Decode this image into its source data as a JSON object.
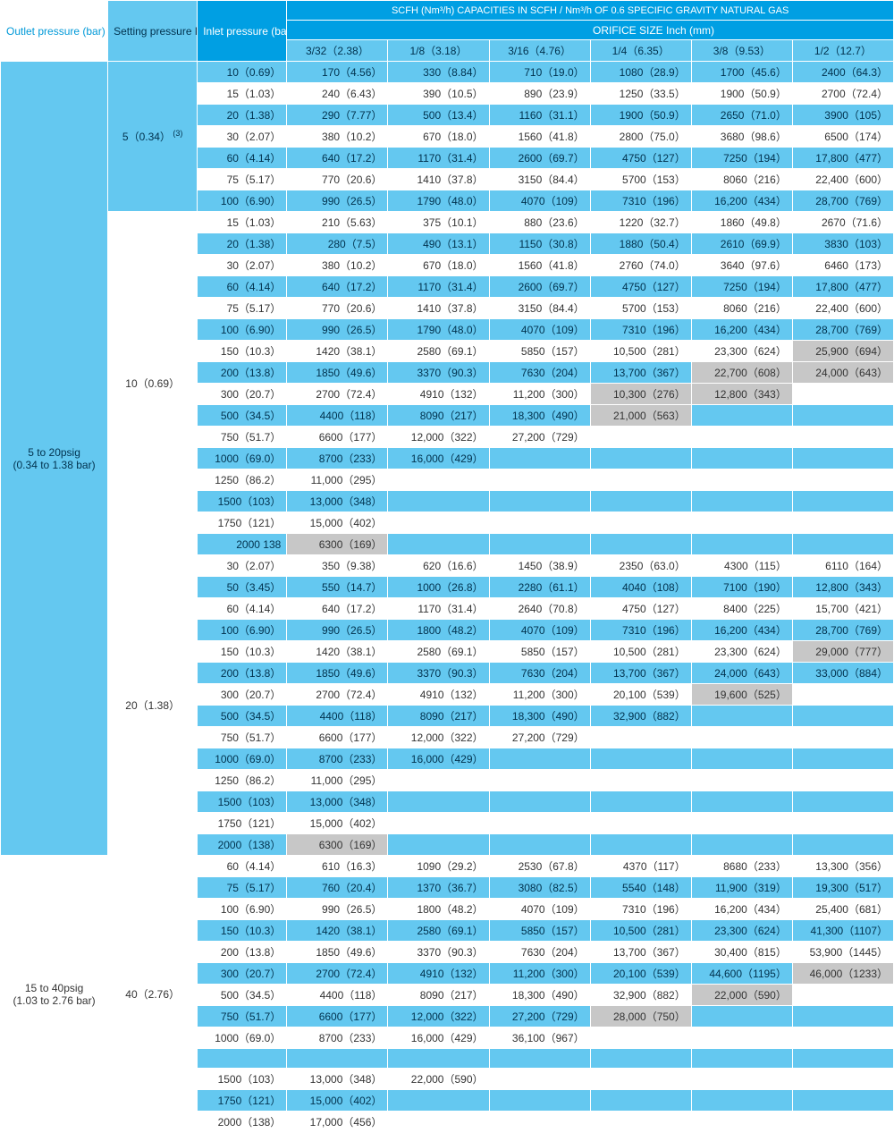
{
  "colors": {
    "header_blue": "#009fe3",
    "cell_blue": "#64c8f0",
    "text_blue": "#0099d8",
    "shaded": "#c7c7c7",
    "white": "#ffffff"
  },
  "headers": {
    "outlet": "Outlet pressure\n(bar)",
    "setting": "Setting pressure\nPSIG (bar)",
    "inlet": "Inlet pressure\n(bar)",
    "cap_title": "SCFH (Nm³/h) CAPACITIES IN SCFH /  Nm³/h OF 0.6 SPECIFIC GRAVITY NATURAL GAS",
    "orifice_label": "ORIFICE SIZE   Inch (mm)",
    "orifice_sizes": [
      "3/32（2.38）",
      "1/8（3.18）",
      "3/16（4.76）",
      "1/4（6.35）",
      "3/8（9.53）",
      "1/2（12.7）"
    ]
  },
  "groups": [
    {
      "outlet": "5 to 20psig\n(0.34 to 1.38 bar)",
      "settings": [
        {
          "label": "5（0.34）",
          "note": "(3)",
          "rows": [
            {
              "inlet": "10（0.69）",
              "v": [
                "170（4.56）",
                "330（8.84）",
                "710（19.0）",
                "1080（28.9）",
                "1700（45.6）",
                "2400（64.3）"
              ]
            },
            {
              "inlet": "15（1.03）",
              "v": [
                "240（6.43）",
                "390（10.5）",
                "890（23.9）",
                "1250（33.5）",
                "1900（50.9）",
                "2700（72.4）"
              ]
            },
            {
              "inlet": "20（1.38）",
              "v": [
                "290（7.77）",
                "500（13.4）",
                "1160（31.1）",
                "1900（50.9）",
                "2650（71.0）",
                "3900（105）"
              ]
            },
            {
              "inlet": "30（2.07）",
              "v": [
                "380（10.2）",
                "670（18.0）",
                "1560（41.8）",
                "2800（75.0）",
                "3680（98.6）",
                "6500（174）"
              ]
            },
            {
              "inlet": "60（4.14）",
              "v": [
                "640（17.2）",
                "1170（31.4）",
                "2600（69.7）",
                "4750（127）",
                "7250（194）",
                "17,800（477）"
              ]
            },
            {
              "inlet": "75（5.17）",
              "v": [
                "770（20.6）",
                "1410（37.8）",
                "3150（84.4）",
                "5700（153）",
                "8060（216）",
                "22,400（600）"
              ]
            },
            {
              "inlet": "100（6.90）",
              "v": [
                "990（26.5）",
                "1790（48.0）",
                "4070（109）",
                "7310（196）",
                "16,200（434）",
                "28,700（769）"
              ]
            }
          ]
        },
        {
          "label": "10（0.69）",
          "rows": [
            {
              "inlet": "15（1.03）",
              "v": [
                "210（5.63）",
                "375（10.1）",
                "880（23.6）",
                "1220（32.7）",
                "1860（49.8）",
                "2670（71.6）"
              ]
            },
            {
              "inlet": "20（1.38）",
              "v": [
                "280（7.5）",
                "490（13.1）",
                "1150（30.8）",
                "1880（50.4）",
                "2610（69.9）",
                "3830（103）"
              ]
            },
            {
              "inlet": "30（2.07）",
              "v": [
                "380（10.2）",
                "670（18.0）",
                "1560（41.8）",
                "2760（74.0）",
                "3640（97.6）",
                "6460（173）"
              ]
            },
            {
              "inlet": "60（4.14）",
              "v": [
                "640（17.2）",
                "1170（31.4）",
                "2600（69.7）",
                "4750（127）",
                "7250（194）",
                "17,800（477）"
              ]
            },
            {
              "inlet": "75（5.17）",
              "v": [
                "770（20.6）",
                "1410（37.8）",
                "3150（84.4）",
                "5700（153）",
                "8060（216）",
                "22,400（600）"
              ]
            },
            {
              "inlet": "100（6.90）",
              "v": [
                "990（26.5）",
                "1790（48.0）",
                "4070（109）",
                "7310（196）",
                "16,200（434）",
                "28,700（769）"
              ]
            },
            {
              "inlet": "150（10.3）",
              "v": [
                "1420（38.1）",
                "2580（69.1）",
                "5850（157）",
                "10,500（281）",
                "23,300（624）",
                "25,900（694）"
              ],
              "shade": [
                5
              ]
            },
            {
              "inlet": "200（13.8）",
              "v": [
                "1850（49.6）",
                "3370（90.3）",
                "7630（204）",
                "13,700（367）",
                "22,700（608）",
                "24,000（643）"
              ],
              "shade": [
                4,
                5
              ]
            },
            {
              "inlet": "300（20.7）",
              "v": [
                "2700（72.4）",
                "4910（132）",
                "11,200（300）",
                "10,300（276）",
                "12,800（343）",
                ""
              ],
              "shade": [
                3,
                4
              ]
            },
            {
              "inlet": "500（34.5）",
              "v": [
                "4400（118）",
                "8090（217）",
                "18,300（490）",
                "21,000（563）",
                "",
                ""
              ],
              "shade": [
                3
              ]
            },
            {
              "inlet": "750（51.7）",
              "v": [
                "6600（177）",
                "12,000（322）",
                "27,200（729）",
                "",
                "",
                ""
              ]
            },
            {
              "inlet": "1000（69.0）",
              "v": [
                "8700（233）",
                "16,000（429）",
                "",
                "",
                "",
                ""
              ]
            },
            {
              "inlet": "1250（86.2）",
              "v": [
                "11,000（295）",
                "",
                "",
                "",
                "",
                ""
              ]
            },
            {
              "inlet": "1500（103）",
              "v": [
                "13,000（348）",
                "",
                "",
                "",
                "",
                ""
              ]
            },
            {
              "inlet": "1750（121）",
              "v": [
                "15,000（402）",
                "",
                "",
                "",
                "",
                ""
              ]
            },
            {
              "inlet": "2000   138",
              "v": [
                "6300（169）",
                "",
                "",
                "",
                "",
                ""
              ],
              "shade": [
                0
              ]
            }
          ]
        },
        {
          "label": "20（1.38）",
          "rows": [
            {
              "inlet": "30（2.07）",
              "v": [
                "350（9.38）",
                "620（16.6）",
                "1450（38.9）",
                "2350（63.0）",
                "4300（115）",
                "6110（164）"
              ]
            },
            {
              "inlet": "50（3.45）",
              "v": [
                "550（14.7）",
                "1000（26.8）",
                "2280（61.1）",
                "4040（108）",
                "7100（190）",
                "12,800（343）"
              ]
            },
            {
              "inlet": "60（4.14）",
              "v": [
                "640（17.2）",
                "1170（31.4）",
                "2640（70.8）",
                "4750（127）",
                "8400（225）",
                "15,700（421）"
              ]
            },
            {
              "inlet": "100（6.90）",
              "v": [
                "990（26.5）",
                "1800（48.2）",
                "4070（109）",
                "7310（196）",
                "16,200（434）",
                "28,700（769）"
              ]
            },
            {
              "inlet": "150（10.3）",
              "v": [
                "1420（38.1）",
                "2580（69.1）",
                "5850（157）",
                "10,500（281）",
                "23,300（624）",
                "29,000（777）"
              ],
              "shade": [
                5
              ]
            },
            {
              "inlet": "200（13.8）",
              "v": [
                "1850（49.6）",
                "3370（90.3）",
                "7630（204）",
                "13,700（367）",
                "24,000（643）",
                "33,000（884）"
              ]
            },
            {
              "inlet": "300（20.7）",
              "v": [
                "2700（72.4）",
                "4910（132）",
                "11,200（300）",
                "20,100（539）",
                "19,600（525）",
                ""
              ],
              "shade": [
                4
              ]
            },
            {
              "inlet": "500（34.5）",
              "v": [
                "4400（118）",
                "8090（217）",
                "18,300（490）",
                "32,900（882）",
                "",
                ""
              ]
            },
            {
              "inlet": "750（51.7）",
              "v": [
                "6600（177）",
                "12,000（322）",
                "27,200（729）",
                "",
                "",
                ""
              ]
            },
            {
              "inlet": "1000（69.0）",
              "v": [
                "8700（233）",
                "16,000（429）",
                "",
                "",
                "",
                ""
              ]
            },
            {
              "inlet": "1250（86.2）",
              "v": [
                "11,000（295）",
                "",
                "",
                "",
                "",
                ""
              ]
            },
            {
              "inlet": "1500（103）",
              "v": [
                "13,000（348）",
                "",
                "",
                "",
                "",
                ""
              ]
            },
            {
              "inlet": "1750（121）",
              "v": [
                "15,000（402）",
                "",
                "",
                "",
                "",
                ""
              ]
            },
            {
              "inlet": "2000（138）",
              "v": [
                "6300（169）",
                "",
                "",
                "",
                "",
                ""
              ],
              "shade": [
                0
              ]
            }
          ]
        }
      ]
    },
    {
      "outlet": "15 to 40psig\n(1.03 to 2.76 bar)",
      "settings": [
        {
          "label": "40（2.76）",
          "rows": [
            {
              "inlet": "60（4.14）",
              "v": [
                "610（16.3）",
                "1090（29.2）",
                "2530（67.8）",
                "4370（117）",
                "8680（233）",
                "13,300（356）"
              ]
            },
            {
              "inlet": "75（5.17）",
              "v": [
                "760（20.4）",
                "1370（36.7）",
                "3080（82.5）",
                "5540（148）",
                "11,900（319）",
                "19,300（517）"
              ]
            },
            {
              "inlet": "100（6.90）",
              "v": [
                "990（26.5）",
                "1800（48.2）",
                "4070（109）",
                "7310（196）",
                "16,200（434）",
                "25,400（681）"
              ]
            },
            {
              "inlet": "150（10.3）",
              "v": [
                "1420（38.1）",
                "2580（69.1）",
                "5850（157）",
                "10,500（281）",
                "23,300（624）",
                "41,300（1107）"
              ]
            },
            {
              "inlet": "200（13.8）",
              "v": [
                "1850（49.6）",
                "3370（90.3）",
                "7630（204）",
                "13,700（367）",
                "30,400（815）",
                "53,900（1445）"
              ]
            },
            {
              "inlet": "300（20.7）",
              "v": [
                "2700（72.4）",
                "4910（132）",
                "11,200（300）",
                "20,100（539）",
                "44,600（1195）",
                "46,000（1233）"
              ],
              "shade": [
                5
              ]
            },
            {
              "inlet": "500（34.5）",
              "v": [
                "4400（118）",
                "8090（217）",
                "18,300（490）",
                "32,900（882）",
                "22,000（590）",
                ""
              ],
              "shade": [
                4
              ]
            },
            {
              "inlet": "750（51.7）",
              "v": [
                "6600（177）",
                "12,000（322）",
                "27,200（729）",
                "28,000（750）",
                "",
                ""
              ],
              "shade": [
                3
              ]
            },
            {
              "inlet": "1000（69.0）",
              "v": [
                "8700（233）",
                "16,000（429）",
                "36,100（967）",
                "",
                "",
                ""
              ]
            },
            {
              "inlet": "",
              "v": [
                "",
                "",
                "",
                "",
                "",
                ""
              ]
            },
            {
              "inlet": "1500（103）",
              "v": [
                "13,000（348）",
                "22,000（590）",
                "",
                "",
                "",
                ""
              ]
            },
            {
              "inlet": "1750（121）",
              "v": [
                "15,000（402）",
                "",
                "",
                "",
                "",
                ""
              ]
            },
            {
              "inlet": "2000（138）",
              "v": [
                "17,000（456）",
                "",
                "",
                "",
                "",
                ""
              ]
            }
          ]
        }
      ]
    }
  ]
}
